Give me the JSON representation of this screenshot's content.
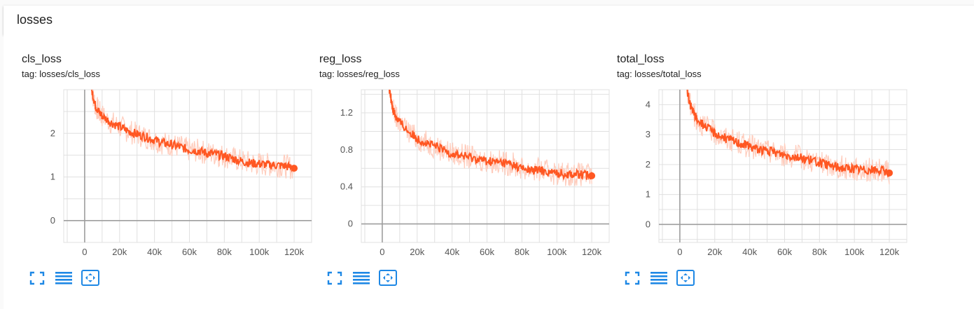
{
  "header": {
    "title": "losses"
  },
  "toolbar_icons": [
    "fullscreen-icon",
    "list-icon",
    "fit-domain-icon"
  ],
  "colors": {
    "line": "#ff5722",
    "smoothed_raw": "#ffccbc",
    "axis": "#9e9e9e",
    "grid": "#e0e0e0"
  },
  "chart_data": [
    {
      "type": "line",
      "title": "cls_loss",
      "tag": "tag: losses/cls_loss",
      "xlim": [
        -12000,
        130000
      ],
      "ylim": [
        -0.5,
        3.0
      ],
      "x_ticks": [
        0,
        20000,
        40000,
        60000,
        80000,
        100000,
        120000
      ],
      "x_tick_labels": [
        "0",
        "20k",
        "40k",
        "60k",
        "80k",
        "100k",
        "120k"
      ],
      "y_ticks": [
        0,
        1,
        2
      ],
      "y_tick_labels": [
        "0",
        "1",
        "2"
      ],
      "grid": true,
      "series": [
        {
          "x": [
            4000,
            6000,
            8000,
            10000,
            15000,
            20000,
            25000,
            30000,
            35000,
            40000,
            45000,
            50000,
            55000,
            60000,
            65000,
            70000,
            75000,
            80000,
            85000,
            90000,
            95000,
            100000,
            105000,
            110000,
            115000,
            120000
          ],
          "values": [
            3.0,
            2.65,
            2.5,
            2.4,
            2.25,
            2.15,
            2.05,
            1.98,
            1.92,
            1.85,
            1.78,
            1.74,
            1.68,
            1.62,
            1.6,
            1.55,
            1.52,
            1.48,
            1.42,
            1.36,
            1.32,
            1.3,
            1.28,
            1.27,
            1.25,
            1.2
          ]
        }
      ]
    },
    {
      "type": "line",
      "title": "reg_loss",
      "tag": "tag: losses/reg_loss",
      "xlim": [
        -12000,
        130000
      ],
      "ylim": [
        -0.2,
        1.45
      ],
      "x_ticks": [
        0,
        20000,
        40000,
        60000,
        80000,
        100000,
        120000
      ],
      "x_tick_labels": [
        "0",
        "20k",
        "40k",
        "60k",
        "80k",
        "100k",
        "120k"
      ],
      "y_ticks": [
        0,
        0.4,
        0.8,
        1.2
      ],
      "y_tick_labels": [
        "0",
        "0.4",
        "0.8",
        "1.2"
      ],
      "grid": true,
      "series": [
        {
          "x": [
            4000,
            6000,
            8000,
            10000,
            15000,
            20000,
            25000,
            30000,
            35000,
            40000,
            45000,
            50000,
            55000,
            60000,
            65000,
            70000,
            75000,
            80000,
            85000,
            90000,
            95000,
            100000,
            105000,
            110000,
            115000,
            120000
          ],
          "values": [
            1.45,
            1.25,
            1.15,
            1.1,
            1.0,
            0.92,
            0.88,
            0.84,
            0.8,
            0.76,
            0.74,
            0.72,
            0.7,
            0.68,
            0.67,
            0.66,
            0.64,
            0.6,
            0.58,
            0.58,
            0.56,
            0.55,
            0.54,
            0.54,
            0.53,
            0.52
          ]
        }
      ]
    },
    {
      "type": "line",
      "title": "total_loss",
      "tag": "tag: losses/total_loss",
      "xlim": [
        -12000,
        130000
      ],
      "ylim": [
        -0.6,
        4.5
      ],
      "x_ticks": [
        0,
        20000,
        40000,
        60000,
        80000,
        100000,
        120000
      ],
      "x_tick_labels": [
        "0",
        "20k",
        "40k",
        "60k",
        "80k",
        "100k",
        "120k"
      ],
      "y_ticks": [
        0,
        1,
        2,
        3,
        4
      ],
      "y_tick_labels": [
        "0",
        "1",
        "2",
        "3",
        "4"
      ],
      "grid": true,
      "series": [
        {
          "x": [
            4000,
            6000,
            8000,
            10000,
            15000,
            20000,
            25000,
            30000,
            35000,
            40000,
            45000,
            50000,
            55000,
            60000,
            65000,
            70000,
            75000,
            80000,
            85000,
            90000,
            95000,
            100000,
            105000,
            110000,
            115000,
            120000
          ],
          "values": [
            4.5,
            4.0,
            3.7,
            3.5,
            3.25,
            3.05,
            2.9,
            2.8,
            2.7,
            2.6,
            2.52,
            2.45,
            2.4,
            2.32,
            2.28,
            2.22,
            2.15,
            2.05,
            1.98,
            1.92,
            1.88,
            1.85,
            1.83,
            1.82,
            1.8,
            1.72
          ]
        }
      ]
    }
  ]
}
